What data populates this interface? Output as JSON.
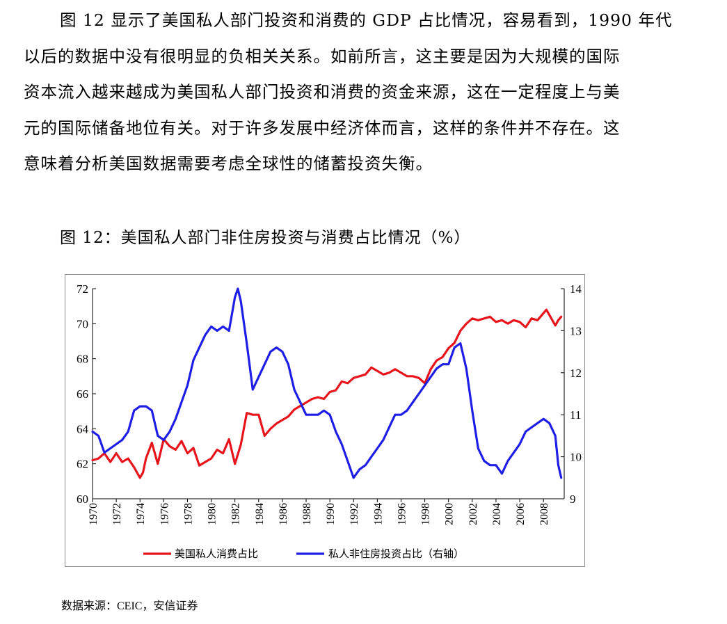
{
  "paragraph": {
    "lines": [
      "图 12 显示了美国私人部门投资和消费的 GDP 占比情况，容易看到，1990 年代",
      "以后的数据中没有很明显的负相关关系。如前所言，这主要是因为大规模的国际",
      "资本流入越来越成为美国私人部门投资和消费的资金来源，这在一定程度上与美",
      "元的国际储备地位有关。对于许多发展中经济体而言，这样的条件并不存在。这",
      "意味着分析美国数据需要考虑全球性的储蓄投资失衡。"
    ]
  },
  "figure": {
    "title": "图 12：美国私人部门非住房投资与消费占比情况（%）",
    "source": "数据来源：CEIC，安信证券"
  },
  "chart_data": {
    "type": "line",
    "title": "美国私人部门非住房投资与消费占比情况（%）",
    "x_ticks": [
      "1970",
      "1972",
      "1974",
      "1976",
      "1978",
      "1980",
      "1982",
      "1984",
      "1986",
      "1988",
      "1990",
      "1992",
      "1994",
      "1996",
      "1998",
      "2000",
      "2002",
      "2004",
      "2006",
      "2008"
    ],
    "xlim": [
      1970,
      2009.75
    ],
    "y_left": {
      "ticks": [
        "60",
        "62",
        "64",
        "66",
        "68",
        "70",
        "72"
      ],
      "lim": [
        60,
        72
      ]
    },
    "y_right": {
      "ticks": [
        "9",
        "10",
        "11",
        "12",
        "13",
        "14"
      ],
      "lim": [
        9,
        14
      ]
    },
    "series": [
      {
        "name": "美国私人消费占比",
        "color": "#e8141b",
        "axis": "left",
        "x": [
          1970,
          1970.5,
          1971,
          1971.5,
          1972,
          1972.5,
          1973,
          1973.5,
          1974,
          1974.25,
          1974.5,
          1975,
          1975.5,
          1976,
          1976.5,
          1977,
          1977.5,
          1978,
          1978.5,
          1979,
          1979.5,
          1980,
          1980.5,
          1981,
          1981.5,
          1982,
          1982.5,
          1983,
          1983.5,
          1984,
          1984.5,
          1985,
          1985.5,
          1986,
          1986.5,
          1987,
          1987.5,
          1988,
          1988.5,
          1989,
          1989.5,
          1990,
          1990.5,
          1991,
          1991.5,
          1992,
          1992.5,
          1993,
          1993.5,
          1994,
          1994.5,
          1995,
          1995.5,
          1996,
          1996.5,
          1997,
          1997.5,
          1998,
          1998.5,
          1999,
          1999.5,
          2000,
          2000.5,
          2001,
          2001.5,
          2002,
          2002.5,
          2003,
          2003.5,
          2004,
          2004.5,
          2005,
          2005.5,
          2006,
          2006.5,
          2007,
          2007.5,
          2008,
          2008.25,
          2008.5,
          2009,
          2009.25,
          2009.5
        ],
        "values": [
          62.2,
          62.3,
          62.6,
          62.1,
          62.6,
          62.1,
          62.3,
          61.8,
          61.2,
          61.5,
          62.3,
          63.2,
          62.0,
          63.4,
          63.0,
          62.8,
          63.3,
          62.6,
          62.9,
          61.9,
          62.1,
          62.3,
          62.8,
          62.6,
          63.4,
          62.0,
          63.1,
          64.9,
          64.8,
          64.8,
          63.6,
          64.0,
          64.3,
          64.5,
          64.7,
          65.1,
          65.3,
          65.5,
          65.7,
          65.8,
          65.7,
          66.1,
          66.2,
          66.7,
          66.6,
          66.9,
          67.0,
          67.1,
          67.5,
          67.3,
          67.1,
          67.2,
          67.4,
          67.2,
          67.0,
          67.0,
          66.9,
          66.6,
          67.4,
          67.9,
          68.1,
          68.6,
          68.9,
          69.6,
          70.0,
          70.3,
          70.2,
          70.3,
          70.4,
          70.1,
          70.2,
          70.0,
          70.2,
          70.1,
          69.8,
          70.3,
          70.2,
          70.6,
          70.8,
          70.5,
          69.9,
          70.2,
          70.4
        ]
      },
      {
        "name": "私人非住房投资占比（右轴）",
        "color": "#1e1ee6",
        "axis": "right",
        "x": [
          1970,
          1970.5,
          1971,
          1971.5,
          1972,
          1972.5,
          1973,
          1973.5,
          1974,
          1974.5,
          1975,
          1975.5,
          1976,
          1976.5,
          1977,
          1977.5,
          1978,
          1978.5,
          1979,
          1979.5,
          1980,
          1980.5,
          1981,
          1981.5,
          1982,
          1982.25,
          1982.5,
          1983,
          1983.5,
          1984,
          1984.5,
          1985,
          1985.5,
          1986,
          1986.5,
          1987,
          1987.5,
          1988,
          1988.5,
          1989,
          1989.5,
          1990,
          1990.5,
          1991,
          1991.5,
          1992,
          1992.5,
          1993,
          1993.5,
          1994,
          1994.5,
          1995,
          1995.5,
          1996,
          1996.5,
          1997,
          1997.5,
          1998,
          1998.5,
          1999,
          1999.5,
          2000,
          2000.5,
          2001,
          2001.5,
          2002,
          2002.5,
          2003,
          2003.5,
          2004,
          2004.5,
          2005,
          2005.5,
          2006,
          2006.5,
          2007,
          2007.5,
          2008,
          2008.5,
          2009,
          2009.25,
          2009.5
        ],
        "values": [
          10.6,
          10.5,
          10.1,
          10.2,
          10.3,
          10.4,
          10.6,
          11.1,
          11.2,
          11.2,
          11.1,
          10.5,
          10.4,
          10.6,
          10.9,
          11.3,
          11.7,
          12.3,
          12.6,
          12.9,
          13.1,
          13.0,
          13.1,
          13.0,
          13.8,
          14.0,
          13.7,
          12.7,
          11.6,
          11.9,
          12.2,
          12.5,
          12.6,
          12.5,
          12.2,
          11.6,
          11.3,
          11.0,
          11.0,
          11.0,
          11.1,
          11.0,
          10.6,
          10.3,
          9.9,
          9.5,
          9.7,
          9.8,
          10.0,
          10.2,
          10.4,
          10.7,
          11.0,
          11.0,
          11.1,
          11.3,
          11.5,
          11.7,
          11.9,
          12.1,
          12.2,
          12.2,
          12.6,
          12.7,
          12.1,
          11.1,
          10.2,
          9.9,
          9.8,
          9.8,
          9.6,
          9.9,
          10.1,
          10.3,
          10.6,
          10.7,
          10.8,
          10.9,
          10.8,
          10.5,
          9.8,
          9.5
        ]
      }
    ]
  }
}
